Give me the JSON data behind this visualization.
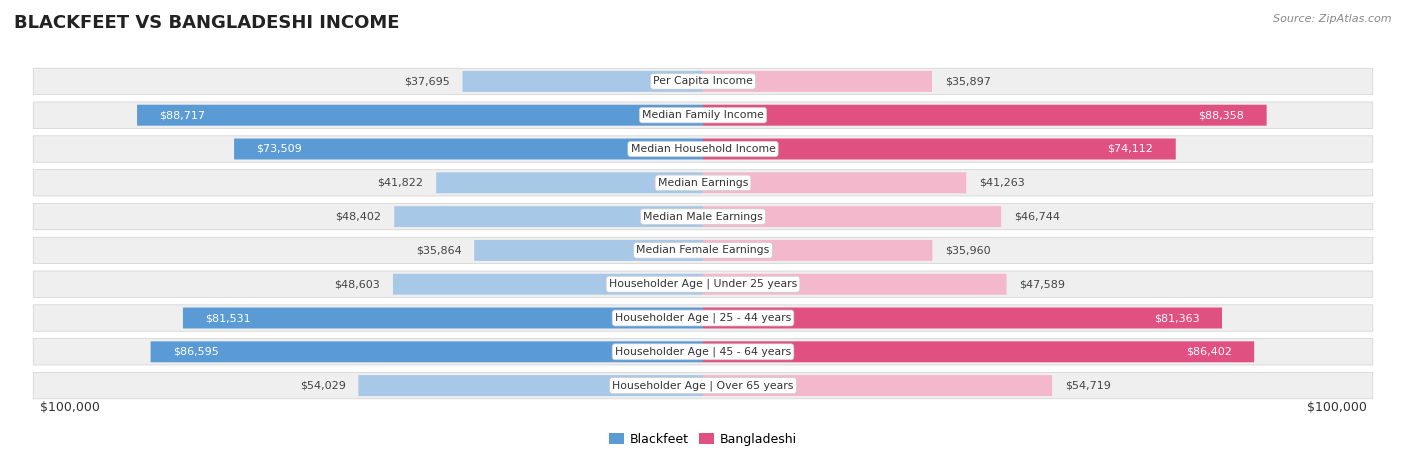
{
  "title": "BLACKFEET VS BANGLADESHI INCOME",
  "source": "Source: ZipAtlas.com",
  "categories": [
    "Per Capita Income",
    "Median Family Income",
    "Median Household Income",
    "Median Earnings",
    "Median Male Earnings",
    "Median Female Earnings",
    "Householder Age | Under 25 years",
    "Householder Age | 25 - 44 years",
    "Householder Age | 45 - 64 years",
    "Householder Age | Over 65 years"
  ],
  "blackfeet_values": [
    37695,
    88717,
    73509,
    41822,
    48402,
    35864,
    48603,
    81531,
    86595,
    54029
  ],
  "bangladeshi_values": [
    35897,
    88358,
    74112,
    41263,
    46744,
    35960,
    47589,
    81363,
    86402,
    54719
  ],
  "blackfeet_color_light": "#a8c8e8",
  "blackfeet_color_dark": "#5b9bd5",
  "bangladeshi_color_light": "#f4b8cc",
  "bangladeshi_color_dark": "#e05080",
  "blackfeet_threshold": 60000,
  "bangladeshi_threshold": 60000,
  "max_value": 100000,
  "row_bg_color": "#efefef",
  "background_color": "#ffffff",
  "axis_label_left": "$100,000",
  "axis_label_right": "$100,000",
  "legend_blackfeet": "Blackfeet",
  "legend_bangladeshi": "Bangladeshi"
}
